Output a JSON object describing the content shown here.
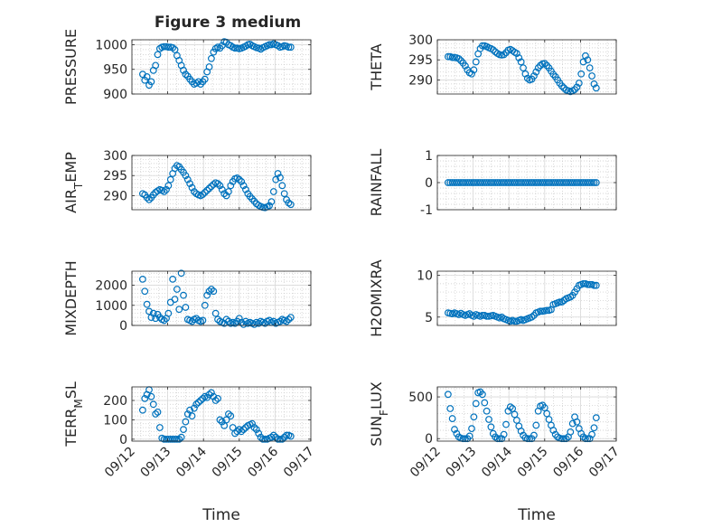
{
  "figure": {
    "title": "Figure 3 medium",
    "marker_color": "#0072BD"
  },
  "xlabel": "Time",
  "x_tick_labels": [
    "09/12",
    "09/13",
    "09/14",
    "09/15",
    "09/16",
    "09/17"
  ],
  "chart_data": [
    {
      "type": "scatter",
      "ylabel": "PRESSURE",
      "xlabel": "",
      "xlim": [
        0,
        5
      ],
      "ylim": [
        900,
        1010
      ],
      "yticks": [
        900,
        950,
        1000
      ],
      "ytick_labels": [
        "900",
        "950",
        "1000"
      ],
      "x": [
        0.3,
        0.36,
        0.42,
        0.48,
        0.54,
        0.6,
        0.66,
        0.72,
        0.78,
        0.84,
        0.9,
        0.96,
        1.02,
        1.08,
        1.14,
        1.2,
        1.26,
        1.32,
        1.38,
        1.44,
        1.5,
        1.56,
        1.62,
        1.68,
        1.74,
        1.8,
        1.86,
        1.92,
        1.98,
        2.04,
        2.1,
        2.16,
        2.22,
        2.28,
        2.34,
        2.4,
        2.46,
        2.52,
        2.58,
        2.64,
        2.7,
        2.76,
        2.82,
        2.88,
        2.94,
        3.0,
        3.06,
        3.12,
        3.18,
        3.24,
        3.3,
        3.36,
        3.42,
        3.48,
        3.54,
        3.6,
        3.66,
        3.72,
        3.78,
        3.84,
        3.9,
        3.96,
        4.02,
        4.08,
        4.14,
        4.2,
        4.26,
        4.32,
        4.38,
        4.44
      ],
      "y": [
        940,
        928,
        935,
        918,
        925,
        948,
        958,
        980,
        992,
        995,
        996,
        996,
        995,
        995,
        994,
        990,
        978,
        968,
        958,
        948,
        940,
        936,
        930,
        925,
        920,
        922,
        925,
        920,
        925,
        930,
        945,
        955,
        972,
        985,
        992,
        995,
        993,
        998,
        1006,
        1005,
        1000,
        998,
        995,
        993,
        993,
        992,
        993,
        995,
        997,
        1000,
        1001,
        998,
        996,
        994,
        993,
        991,
        994,
        996,
        998,
        1000,
        1000,
        1002,
        1000,
        998,
        995,
        996,
        998,
        997,
        995,
        995
      ]
    },
    {
      "type": "scatter",
      "ylabel": "THETA",
      "xlabel": "",
      "xlim": [
        0,
        5
      ],
      "ylim": [
        286.5,
        300
      ],
      "yticks": [
        290,
        295,
        300
      ],
      "ytick_labels": [
        "290",
        "295",
        "300"
      ],
      "x": [
        0.3,
        0.36,
        0.42,
        0.48,
        0.54,
        0.6,
        0.66,
        0.72,
        0.78,
        0.84,
        0.9,
        0.96,
        1.02,
        1.08,
        1.14,
        1.2,
        1.26,
        1.32,
        1.38,
        1.44,
        1.5,
        1.56,
        1.62,
        1.68,
        1.74,
        1.8,
        1.86,
        1.92,
        1.98,
        2.04,
        2.1,
        2.16,
        2.22,
        2.28,
        2.34,
        2.4,
        2.46,
        2.52,
        2.58,
        2.64,
        2.7,
        2.76,
        2.82,
        2.88,
        2.94,
        3.0,
        3.06,
        3.12,
        3.18,
        3.24,
        3.3,
        3.36,
        3.42,
        3.48,
        3.54,
        3.6,
        3.66,
        3.72,
        3.78,
        3.84,
        3.9,
        3.96,
        4.02,
        4.08,
        4.14,
        4.2,
        4.26,
        4.32,
        4.38,
        4.44
      ],
      "y": [
        295.8,
        295.8,
        295.6,
        295.6,
        295.5,
        295.3,
        294.8,
        294.2,
        293.5,
        292.5,
        291.8,
        291.5,
        292.5,
        294.5,
        296.5,
        297.8,
        298.5,
        298.5,
        298.3,
        298.0,
        297.8,
        297.5,
        297.0,
        296.6,
        296.3,
        296.2,
        296.3,
        296.8,
        297.4,
        297.6,
        297.3,
        296.9,
        296.6,
        295.5,
        294.5,
        293.0,
        291.5,
        290.4,
        290.0,
        290.2,
        291.0,
        292.0,
        293.0,
        293.6,
        294.0,
        294.1,
        293.6,
        293.0,
        292.2,
        291.4,
        290.8,
        290.0,
        289.2,
        288.5,
        288.0,
        287.5,
        287.3,
        287.1,
        287.3,
        287.6,
        288.2,
        289.2,
        291.5,
        294.5,
        296.0,
        295.0,
        293.0,
        291.0,
        289.0,
        288.0
      ]
    },
    {
      "type": "scatter",
      "ylabel": "AIR_TEMP",
      "xlabel": "",
      "xlim": [
        0,
        5
      ],
      "ylim": [
        286.5,
        300
      ],
      "yticks": [
        290,
        295,
        300
      ],
      "ytick_labels": [
        "290",
        "295",
        "300"
      ],
      "x": [
        0.3,
        0.36,
        0.42,
        0.48,
        0.54,
        0.6,
        0.66,
        0.72,
        0.78,
        0.84,
        0.9,
        0.96,
        1.02,
        1.08,
        1.14,
        1.2,
        1.26,
        1.32,
        1.38,
        1.44,
        1.5,
        1.56,
        1.62,
        1.68,
        1.74,
        1.8,
        1.86,
        1.92,
        1.98,
        2.04,
        2.1,
        2.16,
        2.22,
        2.28,
        2.34,
        2.4,
        2.46,
        2.52,
        2.58,
        2.64,
        2.7,
        2.76,
        2.82,
        2.88,
        2.94,
        3.0,
        3.06,
        3.12,
        3.18,
        3.24,
        3.3,
        3.36,
        3.42,
        3.48,
        3.54,
        3.6,
        3.66,
        3.72,
        3.78,
        3.84,
        3.9,
        3.96,
        4.02,
        4.08,
        4.14,
        4.2,
        4.26,
        4.32,
        4.38,
        4.44
      ],
      "y": [
        290.5,
        290.2,
        289.5,
        289.0,
        289.5,
        290.2,
        290.8,
        291.2,
        291.5,
        291.3,
        291.0,
        291.5,
        292.5,
        294.0,
        295.5,
        296.8,
        297.5,
        297.2,
        296.5,
        295.8,
        295.0,
        294.0,
        293.0,
        292.0,
        291.0,
        290.5,
        290.2,
        290.0,
        290.3,
        290.8,
        291.3,
        291.8,
        292.3,
        292.8,
        293.2,
        293.0,
        292.5,
        291.5,
        290.5,
        290.0,
        291.0,
        292.5,
        293.5,
        294.2,
        294.4,
        294.0,
        293.5,
        292.5,
        291.5,
        290.5,
        289.8,
        289.2,
        288.6,
        288.0,
        287.6,
        287.3,
        287.1,
        287.0,
        287.2,
        287.5,
        288.5,
        291.0,
        294.0,
        295.5,
        294.5,
        292.5,
        290.5,
        289.0,
        288.2,
        287.8
      ]
    },
    {
      "type": "scatter",
      "ylabel": "RAINFALL",
      "xlabel": "",
      "xlim": [
        0,
        5
      ],
      "ylim": [
        -1,
        1
      ],
      "yticks": [
        -1,
        0,
        1
      ],
      "ytick_labels": [
        "-1",
        "0",
        "1"
      ],
      "x": [
        0.3,
        0.36,
        0.42,
        0.48,
        0.54,
        0.6,
        0.66,
        0.72,
        0.78,
        0.84,
        0.9,
        0.96,
        1.02,
        1.08,
        1.14,
        1.2,
        1.26,
        1.32,
        1.38,
        1.44,
        1.5,
        1.56,
        1.62,
        1.68,
        1.74,
        1.8,
        1.86,
        1.92,
        1.98,
        2.04,
        2.1,
        2.16,
        2.22,
        2.28,
        2.34,
        2.4,
        2.46,
        2.52,
        2.58,
        2.64,
        2.7,
        2.76,
        2.82,
        2.88,
        2.94,
        3.0,
        3.06,
        3.12,
        3.18,
        3.24,
        3.3,
        3.36,
        3.42,
        3.48,
        3.54,
        3.6,
        3.66,
        3.72,
        3.78,
        3.84,
        3.9,
        3.96,
        4.02,
        4.08,
        4.14,
        4.2,
        4.26,
        4.32,
        4.38,
        4.44
      ],
      "y": [
        0,
        0,
        0,
        0,
        0,
        0,
        0,
        0,
        0,
        0,
        0,
        0,
        0,
        0,
        0,
        0,
        0,
        0,
        0,
        0,
        0,
        0,
        0,
        0,
        0,
        0,
        0,
        0,
        0,
        0,
        0,
        0,
        0,
        0,
        0,
        0,
        0,
        0,
        0,
        0,
        0,
        0,
        0,
        0,
        0,
        0,
        0,
        0,
        0,
        0,
        0,
        0,
        0,
        0,
        0,
        0,
        0,
        0,
        0,
        0,
        0,
        0,
        0,
        0,
        0,
        0,
        0,
        0,
        0,
        0
      ]
    },
    {
      "type": "scatter",
      "ylabel": "MIXDEPTH",
      "xlabel": "",
      "xlim": [
        0,
        5
      ],
      "ylim": [
        0,
        2700
      ],
      "yticks": [
        0,
        1000,
        2000
      ],
      "ytick_labels": [
        "0",
        "1000",
        "2000"
      ],
      "x": [
        0.3,
        0.36,
        0.42,
        0.48,
        0.54,
        0.6,
        0.66,
        0.72,
        0.78,
        0.84,
        0.9,
        0.96,
        1.02,
        1.08,
        1.14,
        1.2,
        1.26,
        1.32,
        1.38,
        1.44,
        1.5,
        1.56,
        1.62,
        1.68,
        1.74,
        1.8,
        1.86,
        1.92,
        1.98,
        2.04,
        2.1,
        2.16,
        2.22,
        2.28,
        2.34,
        2.4,
        2.46,
        2.52,
        2.58,
        2.64,
        2.7,
        2.76,
        2.82,
        2.88,
        2.94,
        3.0,
        3.06,
        3.12,
        3.18,
        3.24,
        3.3,
        3.36,
        3.42,
        3.48,
        3.54,
        3.6,
        3.66,
        3.72,
        3.78,
        3.84,
        3.9,
        3.96,
        4.02,
        4.08,
        4.14,
        4.2,
        4.26,
        4.32,
        4.38,
        4.44
      ],
      "y": [
        2300,
        1700,
        1050,
        700,
        400,
        600,
        350,
        550,
        400,
        300,
        250,
        350,
        600,
        1150,
        2300,
        1300,
        1800,
        800,
        2600,
        1500,
        900,
        300,
        250,
        200,
        300,
        350,
        250,
        200,
        250,
        1000,
        1500,
        1700,
        1800,
        1700,
        600,
        300,
        200,
        150,
        100,
        300,
        200,
        100,
        150,
        100,
        200,
        350,
        150,
        50,
        200,
        100,
        150,
        100,
        50,
        150,
        100,
        200,
        150,
        100,
        200,
        250,
        150,
        200,
        100,
        150,
        200,
        300,
        250,
        200,
        300,
        400
      ]
    },
    {
      "type": "scatter",
      "ylabel": "H2OMIXRA",
      "xlabel": "",
      "xlim": [
        0,
        5
      ],
      "ylim": [
        4,
        10.5
      ],
      "yticks": [
        5,
        10
      ],
      "ytick_labels": [
        "5",
        "10"
      ],
      "x": [
        0.3,
        0.36,
        0.42,
        0.48,
        0.54,
        0.6,
        0.66,
        0.72,
        0.78,
        0.84,
        0.9,
        0.96,
        1.02,
        1.08,
        1.14,
        1.2,
        1.26,
        1.32,
        1.38,
        1.44,
        1.5,
        1.56,
        1.62,
        1.68,
        1.74,
        1.8,
        1.86,
        1.92,
        1.98,
        2.04,
        2.1,
        2.16,
        2.22,
        2.28,
        2.34,
        2.4,
        2.46,
        2.52,
        2.58,
        2.64,
        2.7,
        2.76,
        2.82,
        2.88,
        2.94,
        3.0,
        3.06,
        3.12,
        3.18,
        3.24,
        3.3,
        3.36,
        3.42,
        3.48,
        3.54,
        3.6,
        3.66,
        3.72,
        3.78,
        3.84,
        3.9,
        3.96,
        4.02,
        4.08,
        4.14,
        4.2,
        4.26,
        4.32,
        4.38,
        4.44
      ],
      "y": [
        5.5,
        5.45,
        5.4,
        5.5,
        5.4,
        5.3,
        5.45,
        5.3,
        5.2,
        5.3,
        5.4,
        5.2,
        5.1,
        5.3,
        5.2,
        5.1,
        5.2,
        5.2,
        5.1,
        5.1,
        5.15,
        5.2,
        5.1,
        5.0,
        4.9,
        5.0,
        4.8,
        4.7,
        4.6,
        4.5,
        4.6,
        4.5,
        4.5,
        4.6,
        4.7,
        4.6,
        4.7,
        4.8,
        4.9,
        5.0,
        5.2,
        5.5,
        5.6,
        5.7,
        5.7,
        5.75,
        5.8,
        5.8,
        5.9,
        6.5,
        6.6,
        6.7,
        6.8,
        6.8,
        7.0,
        7.2,
        7.3,
        7.4,
        7.6,
        8.0,
        8.4,
        8.8,
        8.9,
        9.0,
        9.0,
        8.9,
        8.9,
        8.9,
        8.8,
        8.8
      ]
    },
    {
      "type": "scatter",
      "ylabel": "TERR_MSL",
      "xlabel": "",
      "xlim": [
        0,
        5
      ],
      "ylim": [
        -10,
        270
      ],
      "yticks": [
        0,
        100,
        200
      ],
      "ytick_labels": [
        "0",
        "100",
        "200"
      ],
      "x": [
        0.3,
        0.36,
        0.42,
        0.48,
        0.54,
        0.6,
        0.66,
        0.72,
        0.78,
        0.84,
        0.9,
        0.96,
        1.02,
        1.08,
        1.14,
        1.2,
        1.26,
        1.32,
        1.38,
        1.44,
        1.5,
        1.56,
        1.62,
        1.68,
        1.74,
        1.8,
        1.86,
        1.92,
        1.98,
        2.04,
        2.1,
        2.16,
        2.22,
        2.28,
        2.34,
        2.4,
        2.46,
        2.52,
        2.58,
        2.64,
        2.7,
        2.76,
        2.82,
        2.88,
        2.94,
        3.0,
        3.06,
        3.12,
        3.18,
        3.24,
        3.3,
        3.36,
        3.42,
        3.48,
        3.54,
        3.6,
        3.66,
        3.72,
        3.78,
        3.84,
        3.9,
        3.96,
        4.02,
        4.08,
        4.14,
        4.2,
        4.26,
        4.32,
        4.38,
        4.44
      ],
      "y": [
        150,
        210,
        230,
        255,
        220,
        180,
        130,
        140,
        60,
        5,
        0,
        0,
        0,
        0,
        0,
        0,
        0,
        0,
        10,
        50,
        90,
        130,
        150,
        120,
        160,
        180,
        190,
        200,
        210,
        220,
        215,
        230,
        240,
        220,
        200,
        210,
        100,
        90,
        70,
        100,
        130,
        120,
        60,
        30,
        40,
        50,
        40,
        50,
        60,
        70,
        75,
        80,
        60,
        50,
        30,
        10,
        0,
        0,
        0,
        5,
        10,
        20,
        10,
        0,
        0,
        0,
        10,
        20,
        20,
        15
      ]
    },
    {
      "type": "scatter",
      "ylabel": "SUN_FLUX",
      "xlabel": "",
      "xlim": [
        0,
        5
      ],
      "ylim": [
        -30,
        620
      ],
      "yticks": [
        0,
        500
      ],
      "ytick_labels": [
        "0",
        "500"
      ],
      "x": [
        0.3,
        0.36,
        0.42,
        0.48,
        0.54,
        0.6,
        0.66,
        0.72,
        0.78,
        0.84,
        0.9,
        0.96,
        1.02,
        1.08,
        1.14,
        1.2,
        1.26,
        1.32,
        1.38,
        1.44,
        1.5,
        1.56,
        1.62,
        1.68,
        1.74,
        1.8,
        1.86,
        1.92,
        1.98,
        2.04,
        2.1,
        2.16,
        2.22,
        2.28,
        2.34,
        2.4,
        2.46,
        2.52,
        2.58,
        2.64,
        2.7,
        2.76,
        2.82,
        2.88,
        2.94,
        3.0,
        3.06,
        3.12,
        3.18,
        3.24,
        3.3,
        3.36,
        3.42,
        3.48,
        3.54,
        3.6,
        3.66,
        3.72,
        3.78,
        3.84,
        3.9,
        3.96,
        4.02,
        4.08,
        4.14,
        4.2,
        4.26,
        4.32,
        4.38,
        4.44
      ],
      "y": [
        530,
        360,
        240,
        110,
        60,
        20,
        5,
        0,
        0,
        0,
        30,
        120,
        260,
        420,
        550,
        560,
        530,
        430,
        330,
        230,
        140,
        60,
        20,
        0,
        0,
        0,
        50,
        170,
        330,
        380,
        360,
        290,
        220,
        150,
        90,
        40,
        10,
        0,
        0,
        0,
        40,
        160,
        330,
        390,
        400,
        370,
        300,
        230,
        160,
        100,
        50,
        20,
        5,
        0,
        0,
        0,
        20,
        80,
        180,
        260,
        200,
        120,
        60,
        20,
        0,
        0,
        0,
        50,
        130,
        250
      ]
    }
  ]
}
